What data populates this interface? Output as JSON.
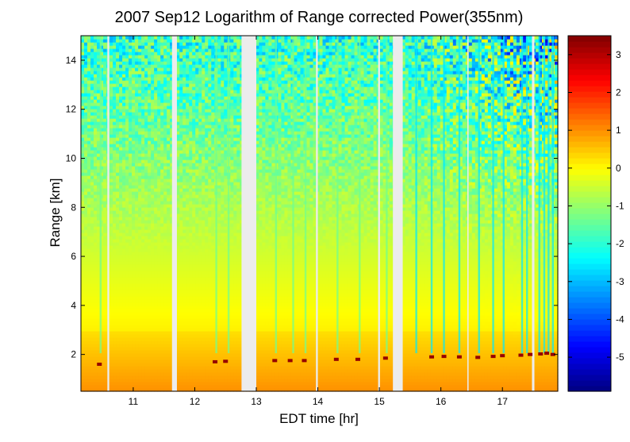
{
  "chart_data": {
    "type": "heatmap",
    "title": "2007 Sep12  Logarithm of Range corrected Power(355nm)",
    "xlabel": "EDT time [hr]",
    "ylabel": "Range [km]",
    "xlim": [
      10.15,
      17.9
    ],
    "ylim": [
      0.5,
      15.0
    ],
    "xticks": [
      11,
      12,
      13,
      14,
      15,
      16,
      17
    ],
    "yticks": [
      2,
      4,
      6,
      8,
      10,
      12,
      14
    ],
    "colorbar": {
      "colormap": "jet",
      "clim": [
        -5.9,
        3.5
      ],
      "ticks": [
        -5,
        -4,
        -3,
        -2,
        -1,
        0,
        1,
        2,
        3
      ]
    },
    "data_gaps_hr": [
      [
        10.58,
        10.61
      ],
      [
        11.63,
        11.71
      ],
      [
        12.76,
        13.0
      ],
      [
        13.97,
        14.0
      ],
      [
        14.98,
        15.01
      ],
      [
        15.22,
        15.38
      ],
      [
        16.43,
        16.45
      ],
      [
        17.48,
        17.52
      ]
    ],
    "boundary_layer_top_km": 3.0,
    "cloud_base": [
      {
        "time_hr": 10.45,
        "range_km": 1.6
      },
      {
        "time_hr": 12.33,
        "range_km": 1.7
      },
      {
        "time_hr": 12.5,
        "range_km": 1.72
      },
      {
        "time_hr": 13.3,
        "range_km": 1.75
      },
      {
        "time_hr": 13.55,
        "range_km": 1.75
      },
      {
        "time_hr": 13.78,
        "range_km": 1.75
      },
      {
        "time_hr": 14.3,
        "range_km": 1.8
      },
      {
        "time_hr": 14.65,
        "range_km": 1.8
      },
      {
        "time_hr": 15.1,
        "range_km": 1.85
      },
      {
        "time_hr": 15.85,
        "range_km": 1.9
      },
      {
        "time_hr": 16.05,
        "range_km": 1.92
      },
      {
        "time_hr": 16.3,
        "range_km": 1.9
      },
      {
        "time_hr": 16.6,
        "range_km": 1.88
      },
      {
        "time_hr": 16.85,
        "range_km": 1.92
      },
      {
        "time_hr": 17.0,
        "range_km": 1.95
      },
      {
        "time_hr": 17.3,
        "range_km": 1.97
      },
      {
        "time_hr": 17.45,
        "range_km": 2.0
      },
      {
        "time_hr": 17.62,
        "range_km": 2.02
      },
      {
        "time_hr": 17.72,
        "range_km": 2.05
      },
      {
        "time_hr": 17.82,
        "range_km": 2.0
      }
    ]
  }
}
